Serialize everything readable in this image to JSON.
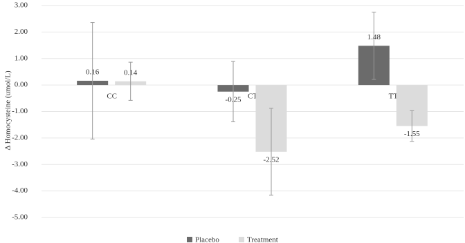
{
  "chart_data": {
    "type": "bar",
    "y_label": "Δ Homocysteine (umol/L)",
    "categories": [
      "CC",
      "CT",
      "TT"
    ],
    "series": [
      {
        "name": "Placebo",
        "color": "#6b6b6b",
        "values": [
          0.16,
          -0.25,
          1.48
        ],
        "errors": [
          2.2,
          1.14,
          1.27
        ]
      },
      {
        "name": "Treatment",
        "color": "#dcdcdc",
        "values": [
          0.14,
          -2.52,
          -1.55
        ],
        "errors": [
          0.72,
          1.64,
          0.58
        ]
      }
    ],
    "ylim": [
      -5,
      3
    ],
    "yticks": [
      {
        "value": 3,
        "label": "3.00"
      },
      {
        "value": 2,
        "label": "2.00"
      },
      {
        "value": 1,
        "label": "1.00"
      },
      {
        "value": 0,
        "label": "0.00"
      },
      {
        "value": -1,
        "label": "-1.00"
      },
      {
        "value": -2,
        "label": "-2.00"
      },
      {
        "value": -3,
        "label": "-3.00"
      },
      {
        "value": -4,
        "label": "-4.00"
      },
      {
        "value": -5,
        "label": "-5.00"
      }
    ],
    "grid": true,
    "legend": "bottom"
  }
}
